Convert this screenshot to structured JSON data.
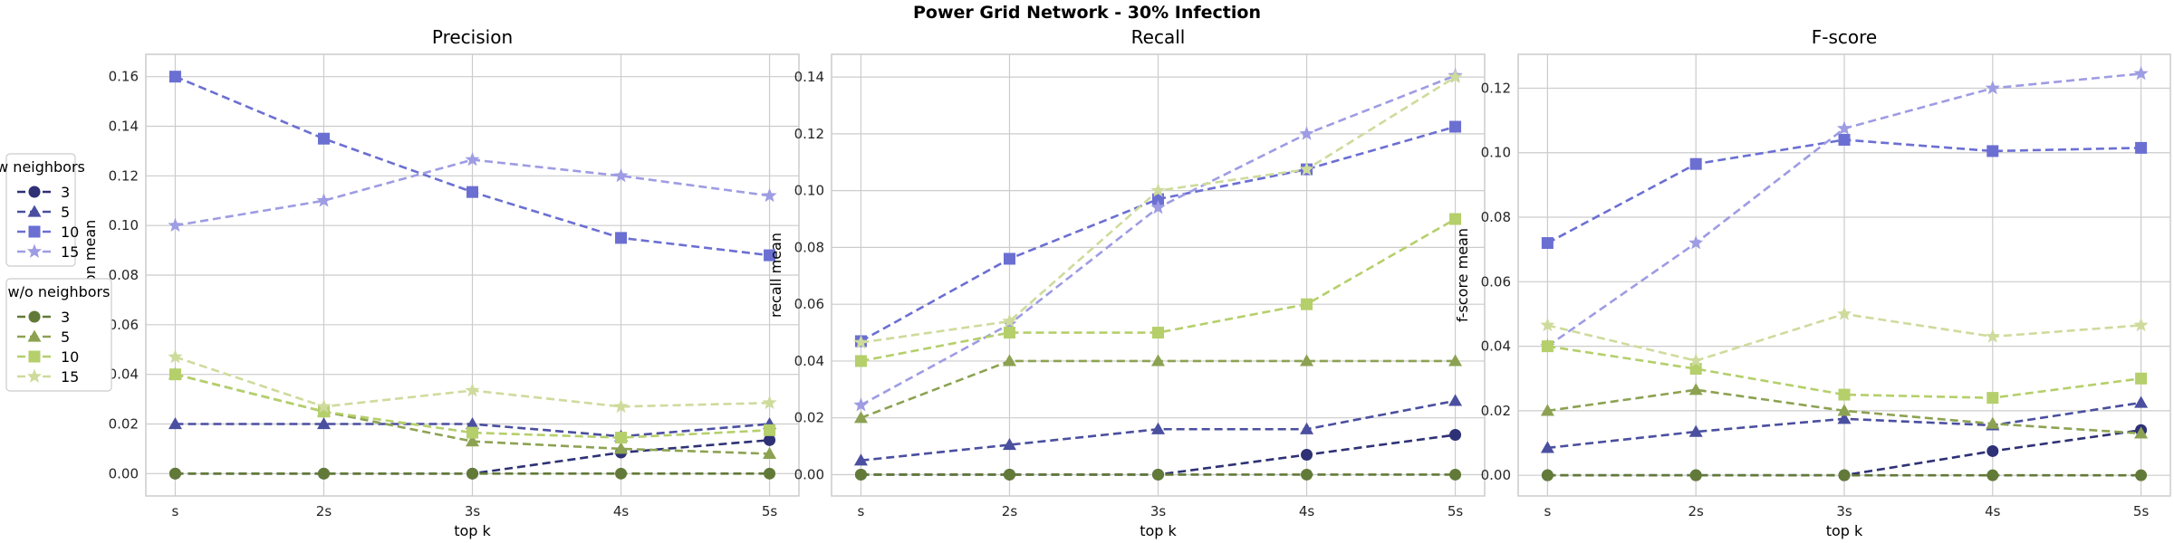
{
  "figure": {
    "title": "Power Grid Network - 30% Infection"
  },
  "chart_data": [
    {
      "type": "line",
      "title": "Precision",
      "xlabel": "top k",
      "ylabel": "precision mean",
      "categories": [
        "s",
        "2s",
        "3s",
        "4s",
        "5s"
      ],
      "ylim": [
        -0.009,
        0.169
      ],
      "yticks": [
        0.0,
        0.02,
        0.04,
        0.06,
        0.08,
        0.1,
        0.12,
        0.14,
        0.16
      ],
      "ytick_labels": [
        "0.00",
        "0.02",
        "0.04",
        "0.06",
        "0.08",
        "0.10",
        "0.12",
        "0.14",
        "0.16"
      ],
      "grid": true,
      "series": [
        {
          "group": "w neighbors",
          "name": "3",
          "color": "#2e3175",
          "marker": "circle",
          "values": [
            0.0,
            0.0,
            0.0,
            0.0085,
            0.0135
          ]
        },
        {
          "group": "w neighbors",
          "name": "5",
          "color": "#4a4f9f",
          "marker": "triangle",
          "values": [
            0.02,
            0.02,
            0.02,
            0.015,
            0.02
          ]
        },
        {
          "group": "w neighbors",
          "name": "10",
          "color": "#6b6fd2",
          "marker": "square",
          "values": [
            0.16,
            0.135,
            0.1135,
            0.095,
            0.088
          ]
        },
        {
          "group": "w neighbors",
          "name": "15",
          "color": "#9e9ce3",
          "marker": "star",
          "values": [
            0.1,
            0.11,
            0.1265,
            0.12,
            0.112
          ]
        },
        {
          "group": "w/o neighbors",
          "name": "3",
          "color": "#627a38",
          "marker": "circle",
          "values": [
            0.0,
            0.0,
            0.0,
            0.0,
            0.0
          ]
        },
        {
          "group": "w/o neighbors",
          "name": "5",
          "color": "#8ca252",
          "marker": "triangle",
          "values": [
            0.04,
            0.025,
            0.013,
            0.01,
            0.008
          ]
        },
        {
          "group": "w/o neighbors",
          "name": "10",
          "color": "#b5cf6b",
          "marker": "square",
          "values": [
            0.04,
            0.025,
            0.0165,
            0.0145,
            0.0175
          ]
        },
        {
          "group": "w/o neighbors",
          "name": "15",
          "color": "#cedb9c",
          "marker": "star",
          "values": [
            0.047,
            0.027,
            0.0335,
            0.027,
            0.0285
          ]
        }
      ]
    },
    {
      "type": "line",
      "title": "Recall",
      "xlabel": "top k",
      "ylabel": "recall mean",
      "categories": [
        "s",
        "2s",
        "3s",
        "4s",
        "5s"
      ],
      "ylim": [
        -0.0075,
        0.148
      ],
      "yticks": [
        0.0,
        0.02,
        0.04,
        0.06,
        0.08,
        0.1,
        0.12,
        0.14
      ],
      "ytick_labels": [
        "0.00",
        "0.02",
        "0.04",
        "0.06",
        "0.08",
        "0.10",
        "0.12",
        "0.14"
      ],
      "grid": true,
      "series": [
        {
          "group": "w neighbors",
          "name": "3",
          "color": "#2e3175",
          "marker": "circle",
          "values": [
            0.0,
            0.0,
            0.0,
            0.007,
            0.014
          ]
        },
        {
          "group": "w neighbors",
          "name": "5",
          "color": "#4a4f9f",
          "marker": "triangle",
          "values": [
            0.005,
            0.0105,
            0.016,
            0.016,
            0.026
          ]
        },
        {
          "group": "w neighbors",
          "name": "10",
          "color": "#6b6fd2",
          "marker": "square",
          "values": [
            0.047,
            0.076,
            0.097,
            0.1075,
            0.1225
          ]
        },
        {
          "group": "w neighbors",
          "name": "15",
          "color": "#9e9ce3",
          "marker": "star",
          "values": [
            0.0245,
            0.053,
            0.094,
            0.12,
            0.1405
          ]
        },
        {
          "group": "w/o neighbors",
          "name": "3",
          "color": "#627a38",
          "marker": "circle",
          "values": [
            0.0,
            0.0,
            0.0,
            0.0,
            0.0
          ]
        },
        {
          "group": "w/o neighbors",
          "name": "5",
          "color": "#8ca252",
          "marker": "triangle",
          "values": [
            0.02,
            0.04,
            0.04,
            0.04,
            0.04
          ]
        },
        {
          "group": "w/o neighbors",
          "name": "10",
          "color": "#b5cf6b",
          "marker": "square",
          "values": [
            0.04,
            0.05,
            0.05,
            0.06,
            0.09
          ]
        },
        {
          "group": "w/o neighbors",
          "name": "15",
          "color": "#cedb9c",
          "marker": "star",
          "values": [
            0.0465,
            0.054,
            0.1,
            0.1075,
            0.14
          ]
        }
      ]
    },
    {
      "type": "line",
      "title": "F-score",
      "xlabel": "top k",
      "ylabel": "f-score mean",
      "categories": [
        "s",
        "2s",
        "3s",
        "4s",
        "5s"
      ],
      "ylim": [
        -0.0064,
        0.1305
      ],
      "yticks": [
        0.0,
        0.02,
        0.04,
        0.06,
        0.08,
        0.1,
        0.12
      ],
      "ytick_labels": [
        "0.00",
        "0.02",
        "0.04",
        "0.06",
        "0.08",
        "0.10",
        "0.12"
      ],
      "grid": true,
      "series": [
        {
          "group": "w neighbors",
          "name": "3",
          "color": "#2e3175",
          "marker": "circle",
          "values": [
            0.0,
            0.0,
            0.0,
            0.0075,
            0.014
          ]
        },
        {
          "group": "w neighbors",
          "name": "5",
          "color": "#4a4f9f",
          "marker": "triangle",
          "values": [
            0.0085,
            0.0135,
            0.0175,
            0.0155,
            0.0225
          ]
        },
        {
          "group": "w neighbors",
          "name": "10",
          "color": "#6b6fd2",
          "marker": "square",
          "values": [
            0.072,
            0.0965,
            0.104,
            0.1005,
            0.1015
          ]
        },
        {
          "group": "w neighbors",
          "name": "15",
          "color": "#9e9ce3",
          "marker": "star",
          "values": [
            0.04,
            0.072,
            0.1075,
            0.12,
            0.1245
          ]
        },
        {
          "group": "w/o neighbors",
          "name": "3",
          "color": "#627a38",
          "marker": "circle",
          "values": [
            0.0,
            0.0,
            0.0,
            0.0,
            0.0
          ]
        },
        {
          "group": "w/o neighbors",
          "name": "5",
          "color": "#8ca252",
          "marker": "triangle",
          "values": [
            0.02,
            0.0265,
            0.02,
            0.016,
            0.013
          ]
        },
        {
          "group": "w/o neighbors",
          "name": "10",
          "color": "#b5cf6b",
          "marker": "square",
          "values": [
            0.04,
            0.033,
            0.025,
            0.024,
            0.03
          ]
        },
        {
          "group": "w/o neighbors",
          "name": "15",
          "color": "#cedb9c",
          "marker": "star",
          "values": [
            0.0465,
            0.0355,
            0.05,
            0.043,
            0.0465
          ]
        }
      ]
    }
  ],
  "legends": [
    {
      "title": "w neighbors",
      "entries": [
        {
          "label": "3",
          "color": "#2e3175",
          "marker": "circle"
        },
        {
          "label": "5",
          "color": "#4a4f9f",
          "marker": "triangle"
        },
        {
          "label": "10",
          "color": "#6b6fd2",
          "marker": "square"
        },
        {
          "label": "15",
          "color": "#9e9ce3",
          "marker": "star"
        }
      ]
    },
    {
      "title": "w/o neighbors",
      "entries": [
        {
          "label": "3",
          "color": "#627a38",
          "marker": "circle"
        },
        {
          "label": "5",
          "color": "#8ca252",
          "marker": "triangle"
        },
        {
          "label": "10",
          "color": "#b5cf6b",
          "marker": "square"
        },
        {
          "label": "15",
          "color": "#cedb9c",
          "marker": "star"
        }
      ]
    }
  ]
}
